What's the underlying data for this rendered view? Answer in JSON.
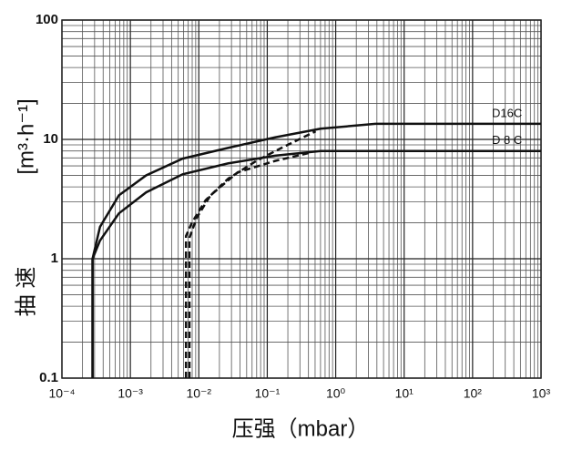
{
  "chart_data": {
    "type": "line",
    "x_label": "压强（mbar）",
    "y_label": "[m³·h⁻¹]",
    "y_label_cn": "抽 速",
    "log_x": true,
    "log_y": true,
    "grid": true,
    "minor_grid": true,
    "xlim": [
      0.0001,
      1000
    ],
    "ylim": [
      0.1,
      100
    ],
    "xticks": [
      {
        "value": 0.0001,
        "label": "10⁻⁴"
      },
      {
        "value": 0.001,
        "label": "10⁻³"
      },
      {
        "value": 0.01,
        "label": "10⁻²"
      },
      {
        "value": 0.1,
        "label": "10⁻¹"
      },
      {
        "value": 1,
        "label": "10⁰"
      },
      {
        "value": 10,
        "label": "10¹"
      },
      {
        "value": 100,
        "label": "10²"
      },
      {
        "value": 1000,
        "label": "10³"
      }
    ],
    "yticks": [
      0.1,
      1,
      10,
      100
    ],
    "series": [
      {
        "name": "D16C",
        "color": "#111111",
        "style": "solid",
        "x": [
          0.00028,
          0.00028,
          0.00036,
          0.00068,
          0.0017,
          0.0058,
          0.027,
          0.13,
          0.6,
          3.8,
          1000
        ],
        "values": [
          0.1,
          1,
          1.85,
          3.4,
          5.0,
          6.9,
          8.5,
          10.4,
          12.3,
          13.5,
          13.5
        ]
      },
      {
        "name": "D 8 C",
        "color": "#111111",
        "style": "solid",
        "x": [
          0.00028,
          0.00028,
          0.00036,
          0.00068,
          0.0017,
          0.0058,
          0.027,
          0.13,
          0.6,
          1000
        ],
        "values": [
          0.1,
          1,
          1.42,
          2.4,
          3.6,
          5.1,
          6.3,
          7.3,
          8.0,
          8.0
        ]
      },
      {
        "color": "#111111",
        "style": "dashed",
        "x": [
          0.0065,
          0.0065,
          0.0079,
          0.0126,
          0.027,
          0.069,
          0.176,
          0.51
        ],
        "values": [
          0.1,
          1.55,
          2.0,
          3.1,
          4.7,
          6.6,
          8.7,
          11.7
        ]
      },
      {
        "color": "#111111",
        "style": "dashed",
        "x": [
          0.0073,
          0.0073,
          0.0093,
          0.0148,
          0.037,
          0.13,
          0.45
        ],
        "values": [
          0.1,
          1.5,
          2.2,
          3.4,
          5.3,
          6.6,
          7.8
        ]
      }
    ]
  }
}
